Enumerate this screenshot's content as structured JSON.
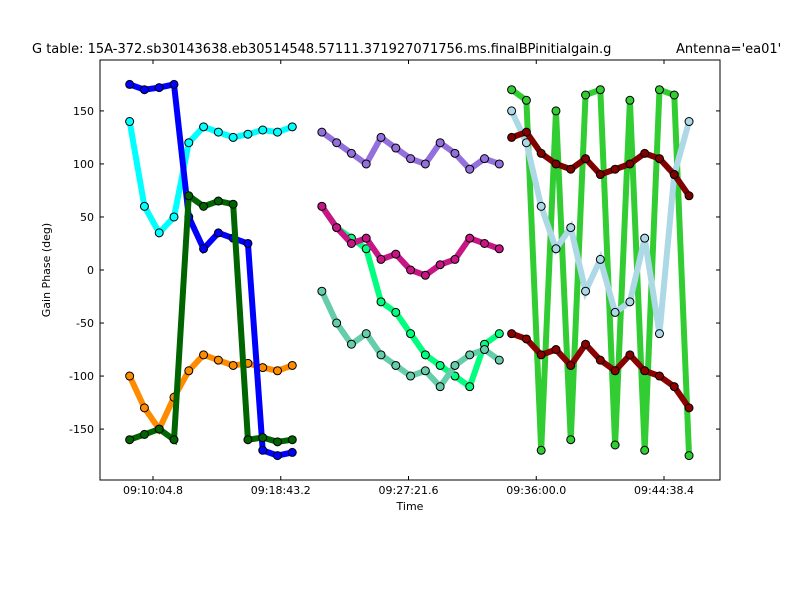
{
  "chart_data": {
    "type": "scatter",
    "title": "G table: 15A-372.sb30143638.eb30514548.57111.371927071756.ms.finalBPinitialgain.g",
    "antenna": "Antenna='ea01'",
    "x_label": "Time",
    "y_label": "Gain Phase (deg)",
    "xlim": [
      32789.7,
      35305.6
    ],
    "ylim": [
      -198,
      198
    ],
    "xticks": [
      {
        "value": 33004.8,
        "label": "09:10:04.8"
      },
      {
        "value": 33523.2,
        "label": "09:18:43.2"
      },
      {
        "value": 34041.6,
        "label": "09:27:21.6"
      },
      {
        "value": 34560,
        "label": "09:36:00.0"
      },
      {
        "value": 35078.4,
        "label": "09:44:38.4"
      }
    ],
    "yticks": [
      -150,
      -100,
      -50,
      0,
      50,
      100,
      150
    ],
    "connect": true,
    "series": [
      {
        "color": "#00ffff",
        "x": [
          32910,
          32970,
          33030,
          33090,
          33150,
          33210,
          33270,
          33330,
          33390,
          33450,
          33510,
          33570
        ],
        "values": [
          140,
          60,
          35,
          50,
          120,
          135,
          130,
          125,
          128,
          132,
          130,
          135
        ]
      },
      {
        "color": "#ff8c00",
        "x": [
          32910,
          32970,
          33030,
          33090,
          33150,
          33210,
          33270,
          33330,
          33390,
          33450,
          33510,
          33570
        ],
        "values": [
          -100,
          -130,
          -150,
          -120,
          -95,
          -80,
          -85,
          -90,
          -88,
          -92,
          -95,
          -90
        ]
      },
      {
        "color": "#0000ff",
        "x": [
          32910,
          32970,
          33030,
          33090,
          33150,
          33210,
          33270,
          33330,
          33390,
          33450,
          33510,
          33570
        ],
        "values": [
          175,
          170,
          172,
          175,
          50,
          20,
          35,
          30,
          25,
          -170,
          -175,
          -172
        ]
      },
      {
        "color": "#006400",
        "x": [
          32910,
          32970,
          33030,
          33090,
          33150,
          33210,
          33270,
          33330,
          33390,
          33450,
          33510,
          33570
        ],
        "values": [
          -160,
          -155,
          -150,
          -160,
          70,
          60,
          65,
          62,
          -160,
          -158,
          -162,
          -160
        ]
      },
      {
        "color": "#9370db",
        "x": [
          33690,
          33750,
          33810,
          33870,
          33930,
          33990,
          34050,
          34110,
          34170,
          34230,
          34290,
          34350,
          34410
        ],
        "values": [
          130,
          120,
          110,
          100,
          125,
          115,
          105,
          100,
          120,
          110,
          95,
          105,
          100
        ]
      },
      {
        "color": "#00ff7f",
        "x": [
          33690,
          33750,
          33810,
          33870,
          33930,
          33990,
          34050,
          34110,
          34170,
          34230,
          34290,
          34350,
          34410
        ],
        "values": [
          60,
          40,
          30,
          20,
          -30,
          -40,
          -60,
          -80,
          -90,
          -100,
          -110,
          -70,
          -60
        ]
      },
      {
        "color": "#c71585",
        "x": [
          33690,
          33750,
          33810,
          33870,
          33930,
          33990,
          34050,
          34110,
          34170,
          34230,
          34290,
          34350,
          34410
        ],
        "values": [
          60,
          40,
          25,
          30,
          10,
          15,
          0,
          -5,
          5,
          10,
          30,
          25,
          20
        ]
      },
      {
        "color": "#66cdaa",
        "x": [
          33690,
          33750,
          33810,
          33870,
          33930,
          33990,
          34050,
          34110,
          34170,
          34230,
          34290,
          34350,
          34410
        ],
        "values": [
          -20,
          -50,
          -70,
          -60,
          -80,
          -90,
          -100,
          -95,
          -110,
          -90,
          -80,
          -75,
          -85
        ]
      },
      {
        "color": "#32cd32",
        "x": [
          34460,
          34520,
          34580,
          34640,
          34700,
          34760,
          34820,
          34880,
          34940,
          35000,
          35060,
          35120,
          35180
        ],
        "values": [
          170,
          160,
          -170,
          150,
          -160,
          165,
          170,
          -165,
          160,
          -170,
          170,
          165,
          -175
        ]
      },
      {
        "color": "#add8e6",
        "x": [
          34460,
          34520,
          34580,
          34640,
          34700,
          34760,
          34820,
          34880,
          34940,
          35000,
          35060,
          35120,
          35180
        ],
        "values": [
          150,
          120,
          60,
          20,
          40,
          -20,
          10,
          -40,
          -30,
          30,
          -60,
          90,
          140
        ]
      },
      {
        "color": "#800000",
        "x": [
          34460,
          34520,
          34580,
          34640,
          34700,
          34760,
          34820,
          34880,
          34940,
          35000,
          35060,
          35120,
          35180
        ],
        "values": [
          125,
          130,
          110,
          100,
          95,
          105,
          90,
          95,
          100,
          110,
          105,
          90,
          70
        ]
      },
      {
        "color": "#8b0000",
        "x": [
          34460,
          34520,
          34580,
          34640,
          34700,
          34760,
          34820,
          34880,
          34940,
          35000,
          35060,
          35120,
          35180
        ],
        "values": [
          -60,
          -65,
          -80,
          -75,
          -90,
          -70,
          -85,
          -95,
          -80,
          -95,
          -100,
          -110,
          -130
        ]
      }
    ]
  }
}
